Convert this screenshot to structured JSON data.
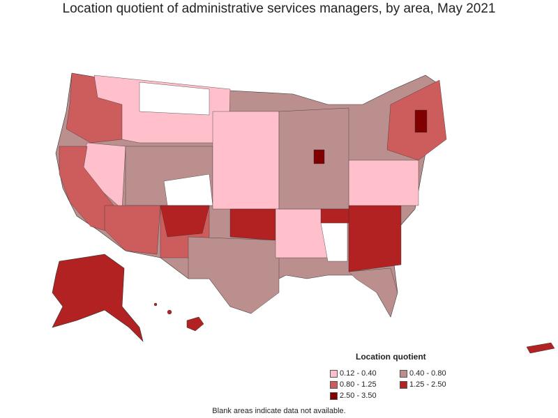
{
  "title": "Location quotient of administrative services managers, by area, May 2021",
  "legend": {
    "title": "Location quotient",
    "items": [
      {
        "label": "0.12 - 0.40",
        "color": "#ffc0cb"
      },
      {
        "label": "0.40 - 0.80",
        "color": "#bc8f8f"
      },
      {
        "label": "0.80 - 1.25",
        "color": "#cd5c5c"
      },
      {
        "label": "1.25 - 2.50",
        "color": "#b22222"
      },
      {
        "label": "2.50 - 3.50",
        "color": "#800000"
      }
    ]
  },
  "footnote": "Blank areas indicate data not available.",
  "colors": {
    "outline": "#333333",
    "no_data": "#ffffff"
  }
}
